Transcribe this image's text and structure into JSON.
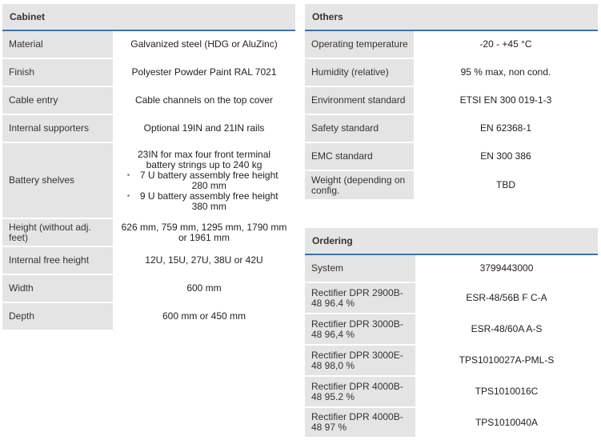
{
  "cabinet": {
    "title": "Cabinet",
    "rows": [
      {
        "label": "Material",
        "value": "Galvanized steel (HDG or AluZinc)"
      },
      {
        "label": "Finish",
        "value": "Polyester Powder Paint RAL 7021"
      },
      {
        "label": "Cable entry",
        "value": "Cable channels on the top cover"
      },
      {
        "label": "Internal supporters",
        "value": "Optional 19IN and 21IN rails"
      },
      {
        "label": "Battery shelves",
        "value": "23IN for max four front terminal battery strings up to 240 kg",
        "bullets": [
          "7 U battery assembly free height 280 mm",
          "9 U battery assembly free height 380 mm"
        ]
      },
      {
        "label": "Height (without adj. feet)",
        "value": "626 mm, 759 mm, 1295 mm, 1790 mm or 1961 mm"
      },
      {
        "label": "Internal free height",
        "value": "12U, 15U, 27U, 38U or 42U"
      },
      {
        "label": "Width",
        "value": "600 mm"
      },
      {
        "label": "Depth",
        "value": "600 mm or 450 mm"
      }
    ]
  },
  "others": {
    "title": "Others",
    "rows": [
      {
        "label": "Operating temperature",
        "value": "-20 - +45 °C"
      },
      {
        "label": "Humidity (relative)",
        "value": "95 % max, non cond."
      },
      {
        "label": "Environment standard",
        "value": "ETSI EN 300 019-1-3"
      },
      {
        "label": "Safety standard",
        "value": "EN 62368-1"
      },
      {
        "label": "EMC standard",
        "value": "EN 300 386"
      },
      {
        "label": "Weight (depending on config.",
        "value": "TBD"
      }
    ]
  },
  "ordering": {
    "title": "Ordering",
    "rows": [
      {
        "label": "System",
        "value": "3799443000"
      },
      {
        "label": "Rectifier DPR 2900B-48 96.4 %",
        "value": "ESR-48/56B F C-A"
      },
      {
        "label": "Rectifier DPR 3000B-48 96,4 %",
        "value": "ESR-48/60A A-S"
      },
      {
        "label": "Rectifier DPR 3000E-48 98,0 %",
        "value": "TPS1010027A-PML-S"
      },
      {
        "label": "Rectifier DPR 4000B-48 95.2 %",
        "value": "TPS1010016C"
      },
      {
        "label": "Rectifier DPR 4000B-48 97 %",
        "value": "TPS1010040A"
      }
    ]
  }
}
